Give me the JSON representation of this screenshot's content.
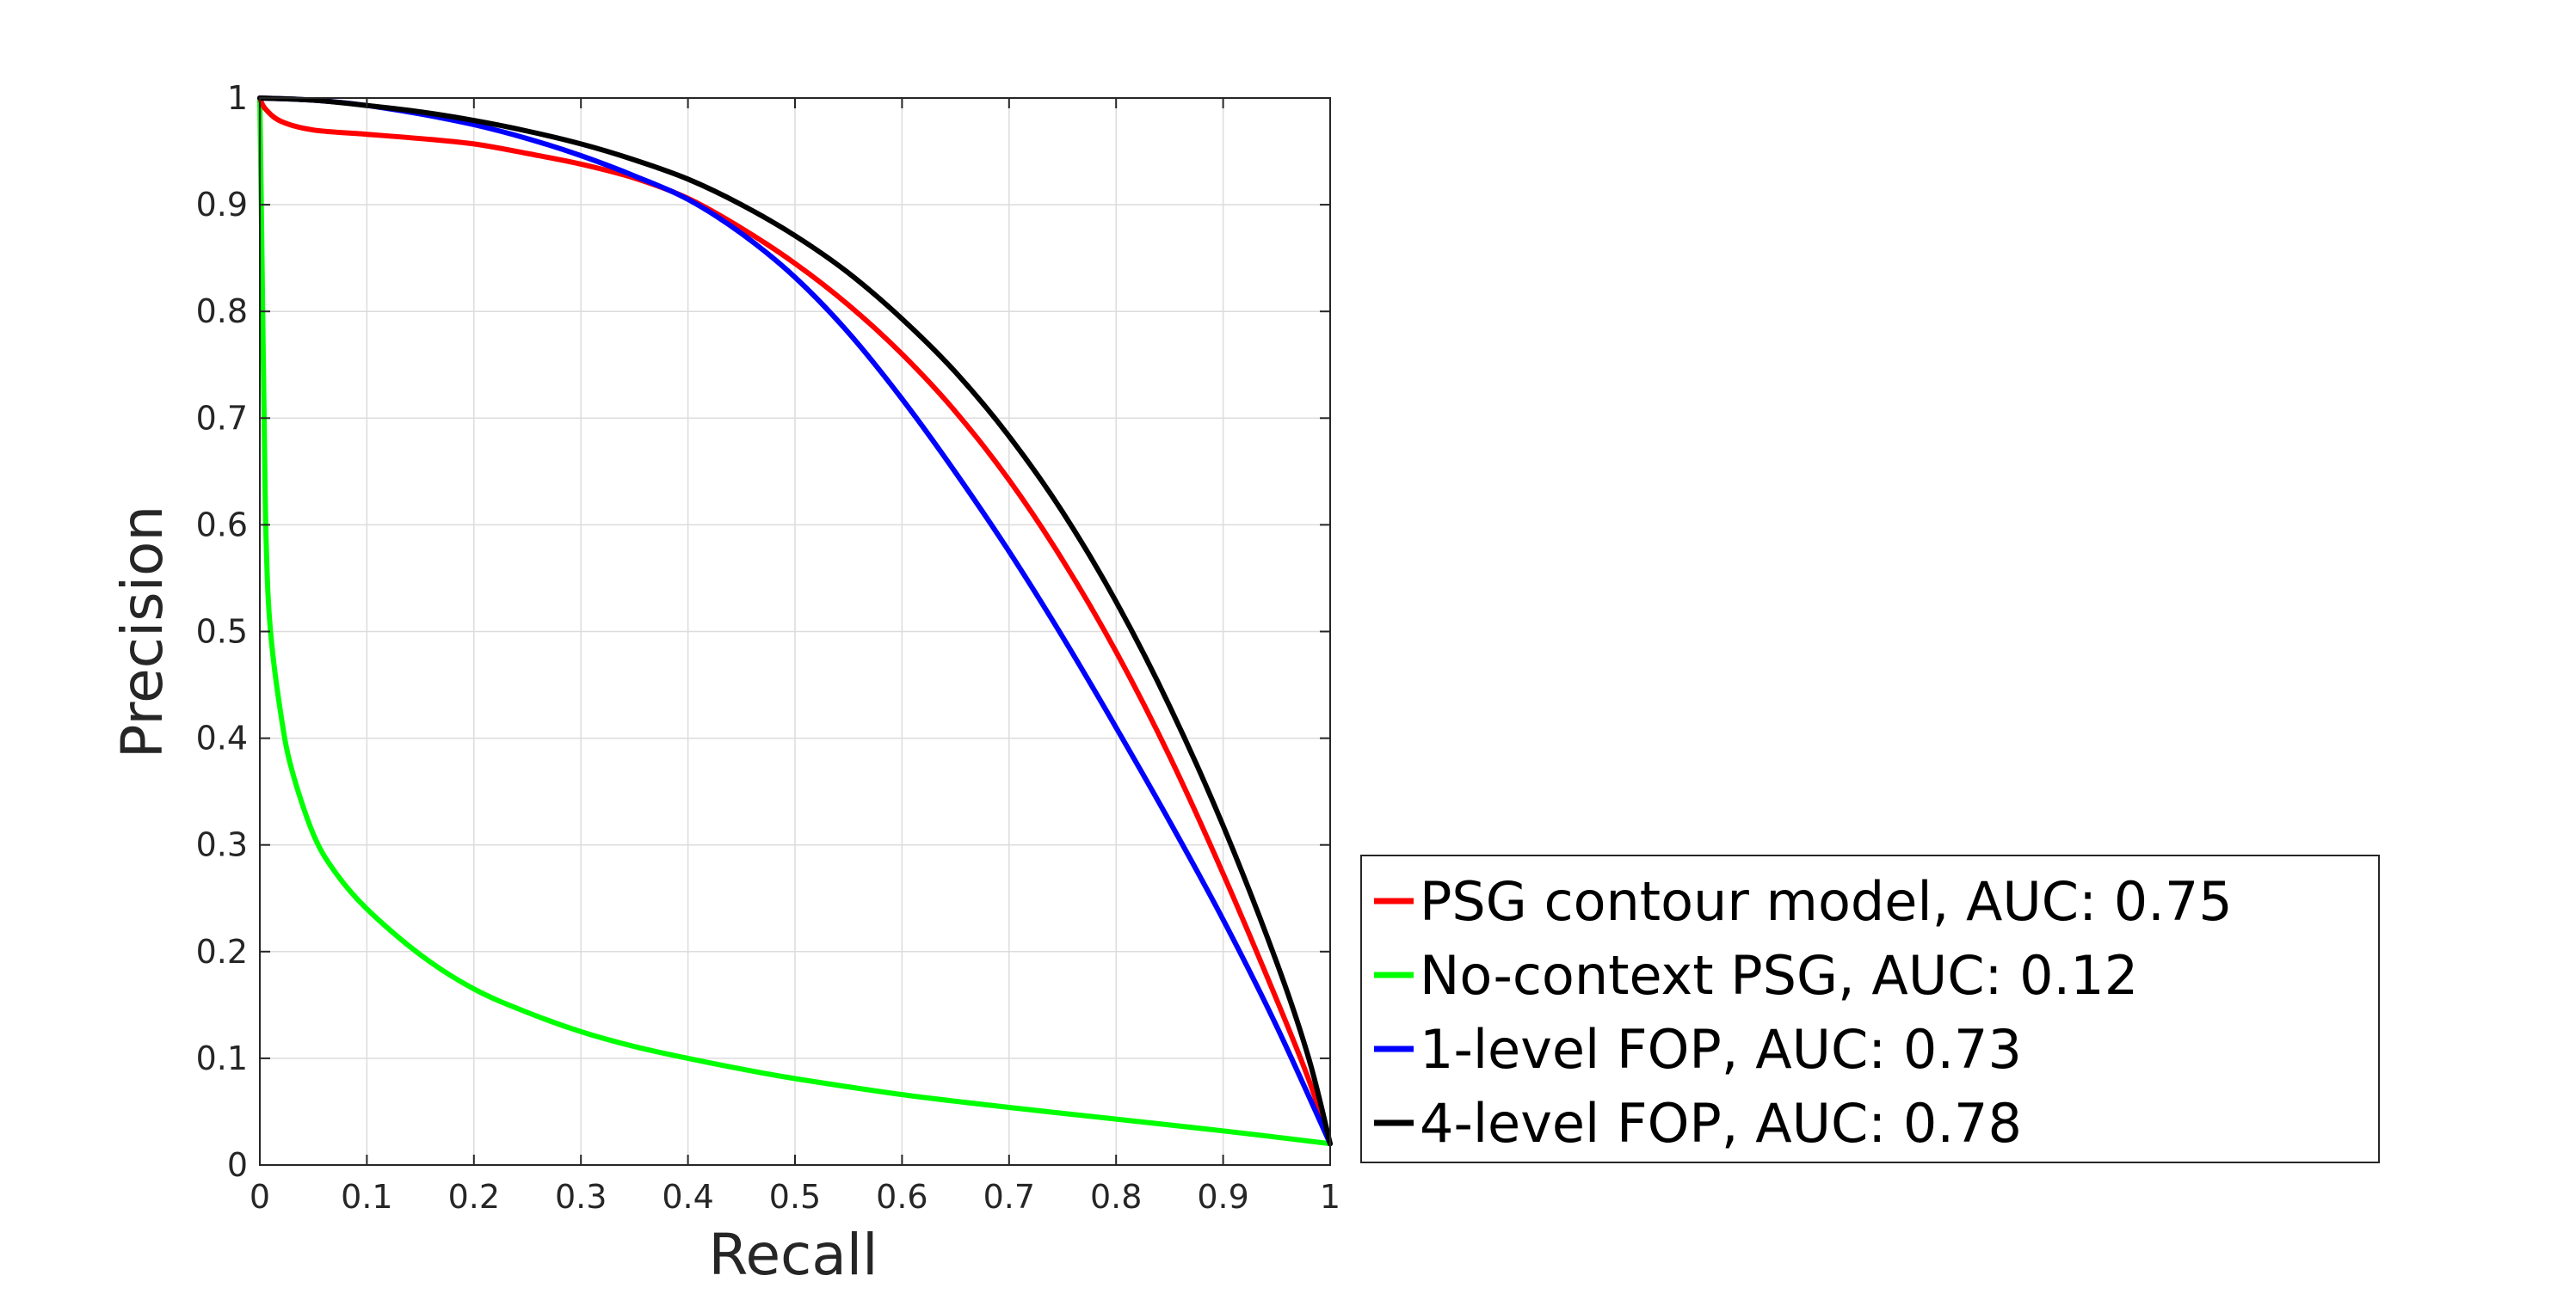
{
  "chart_data": {
    "type": "line",
    "title": "",
    "xlabel": "Recall",
    "ylabel": "Precision",
    "xlim": [
      0,
      1
    ],
    "ylim": [
      0,
      1
    ],
    "grid": true,
    "xticks": [
      "0",
      "0.1",
      "0.2",
      "0.3",
      "0.4",
      "0.5",
      "0.6",
      "0.7",
      "0.8",
      "0.9",
      "1"
    ],
    "yticks": [
      "0",
      "0.1",
      "0.2",
      "0.3",
      "0.4",
      "0.5",
      "0.6",
      "0.7",
      "0.8",
      "0.9",
      "1"
    ],
    "legend_position": "outside-right-bottom",
    "series": [
      {
        "name": "PSG contour model, AUC: 0.75",
        "color": "#ff0000",
        "points": [
          [
            0,
            1
          ],
          [
            0.005,
            0.99
          ],
          [
            0.02,
            0.978
          ],
          [
            0.05,
            0.97
          ],
          [
            0.1,
            0.966
          ],
          [
            0.15,
            0.962
          ],
          [
            0.2,
            0.957
          ],
          [
            0.25,
            0.948
          ],
          [
            0.3,
            0.938
          ],
          [
            0.35,
            0.925
          ],
          [
            0.4,
            0.906
          ],
          [
            0.45,
            0.878
          ],
          [
            0.5,
            0.845
          ],
          [
            0.55,
            0.806
          ],
          [
            0.6,
            0.76
          ],
          [
            0.65,
            0.706
          ],
          [
            0.7,
            0.642
          ],
          [
            0.75,
            0.567
          ],
          [
            0.8,
            0.481
          ],
          [
            0.85,
            0.383
          ],
          [
            0.9,
            0.273
          ],
          [
            0.95,
            0.155
          ],
          [
            0.98,
            0.08
          ],
          [
            1,
            0.02
          ]
        ]
      },
      {
        "name": "No-context PSG, AUC: 0.12",
        "color": "#00ff00",
        "points": [
          [
            0,
            1
          ],
          [
            0.002,
            0.85
          ],
          [
            0.004,
            0.7
          ],
          [
            0.006,
            0.58
          ],
          [
            0.01,
            0.5
          ],
          [
            0.02,
            0.42
          ],
          [
            0.03,
            0.37
          ],
          [
            0.05,
            0.31
          ],
          [
            0.07,
            0.275
          ],
          [
            0.1,
            0.24
          ],
          [
            0.15,
            0.197
          ],
          [
            0.2,
            0.165
          ],
          [
            0.25,
            0.143
          ],
          [
            0.3,
            0.125
          ],
          [
            0.35,
            0.111
          ],
          [
            0.4,
            0.1
          ],
          [
            0.45,
            0.09
          ],
          [
            0.5,
            0.081
          ],
          [
            0.6,
            0.066
          ],
          [
            0.7,
            0.054
          ],
          [
            0.8,
            0.043
          ],
          [
            0.9,
            0.032
          ],
          [
            1,
            0.02
          ]
        ]
      },
      {
        "name": "1-level FOP, AUC: 0.73",
        "color": "#0000ff",
        "points": [
          [
            0,
            1
          ],
          [
            0.05,
            0.998
          ],
          [
            0.1,
            0.993
          ],
          [
            0.15,
            0.985
          ],
          [
            0.2,
            0.975
          ],
          [
            0.25,
            0.962
          ],
          [
            0.3,
            0.946
          ],
          [
            0.35,
            0.927
          ],
          [
            0.4,
            0.905
          ],
          [
            0.45,
            0.873
          ],
          [
            0.5,
            0.832
          ],
          [
            0.55,
            0.78
          ],
          [
            0.6,
            0.718
          ],
          [
            0.65,
            0.649
          ],
          [
            0.7,
            0.575
          ],
          [
            0.75,
            0.495
          ],
          [
            0.8,
            0.41
          ],
          [
            0.85,
            0.322
          ],
          [
            0.9,
            0.23
          ],
          [
            0.95,
            0.13
          ],
          [
            1,
            0.02
          ]
        ]
      },
      {
        "name": "4-level FOP, AUC: 0.78",
        "color": "#000000",
        "points": [
          [
            0,
            1
          ],
          [
            0.05,
            0.998
          ],
          [
            0.1,
            0.993
          ],
          [
            0.15,
            0.987
          ],
          [
            0.2,
            0.979
          ],
          [
            0.25,
            0.969
          ],
          [
            0.3,
            0.957
          ],
          [
            0.35,
            0.942
          ],
          [
            0.4,
            0.924
          ],
          [
            0.45,
            0.9
          ],
          [
            0.5,
            0.871
          ],
          [
            0.55,
            0.836
          ],
          [
            0.6,
            0.793
          ],
          [
            0.65,
            0.743
          ],
          [
            0.7,
            0.683
          ],
          [
            0.75,
            0.612
          ],
          [
            0.8,
            0.528
          ],
          [
            0.85,
            0.43
          ],
          [
            0.9,
            0.318
          ],
          [
            0.95,
            0.19
          ],
          [
            0.98,
            0.1
          ],
          [
            1,
            0.02
          ]
        ]
      }
    ]
  }
}
